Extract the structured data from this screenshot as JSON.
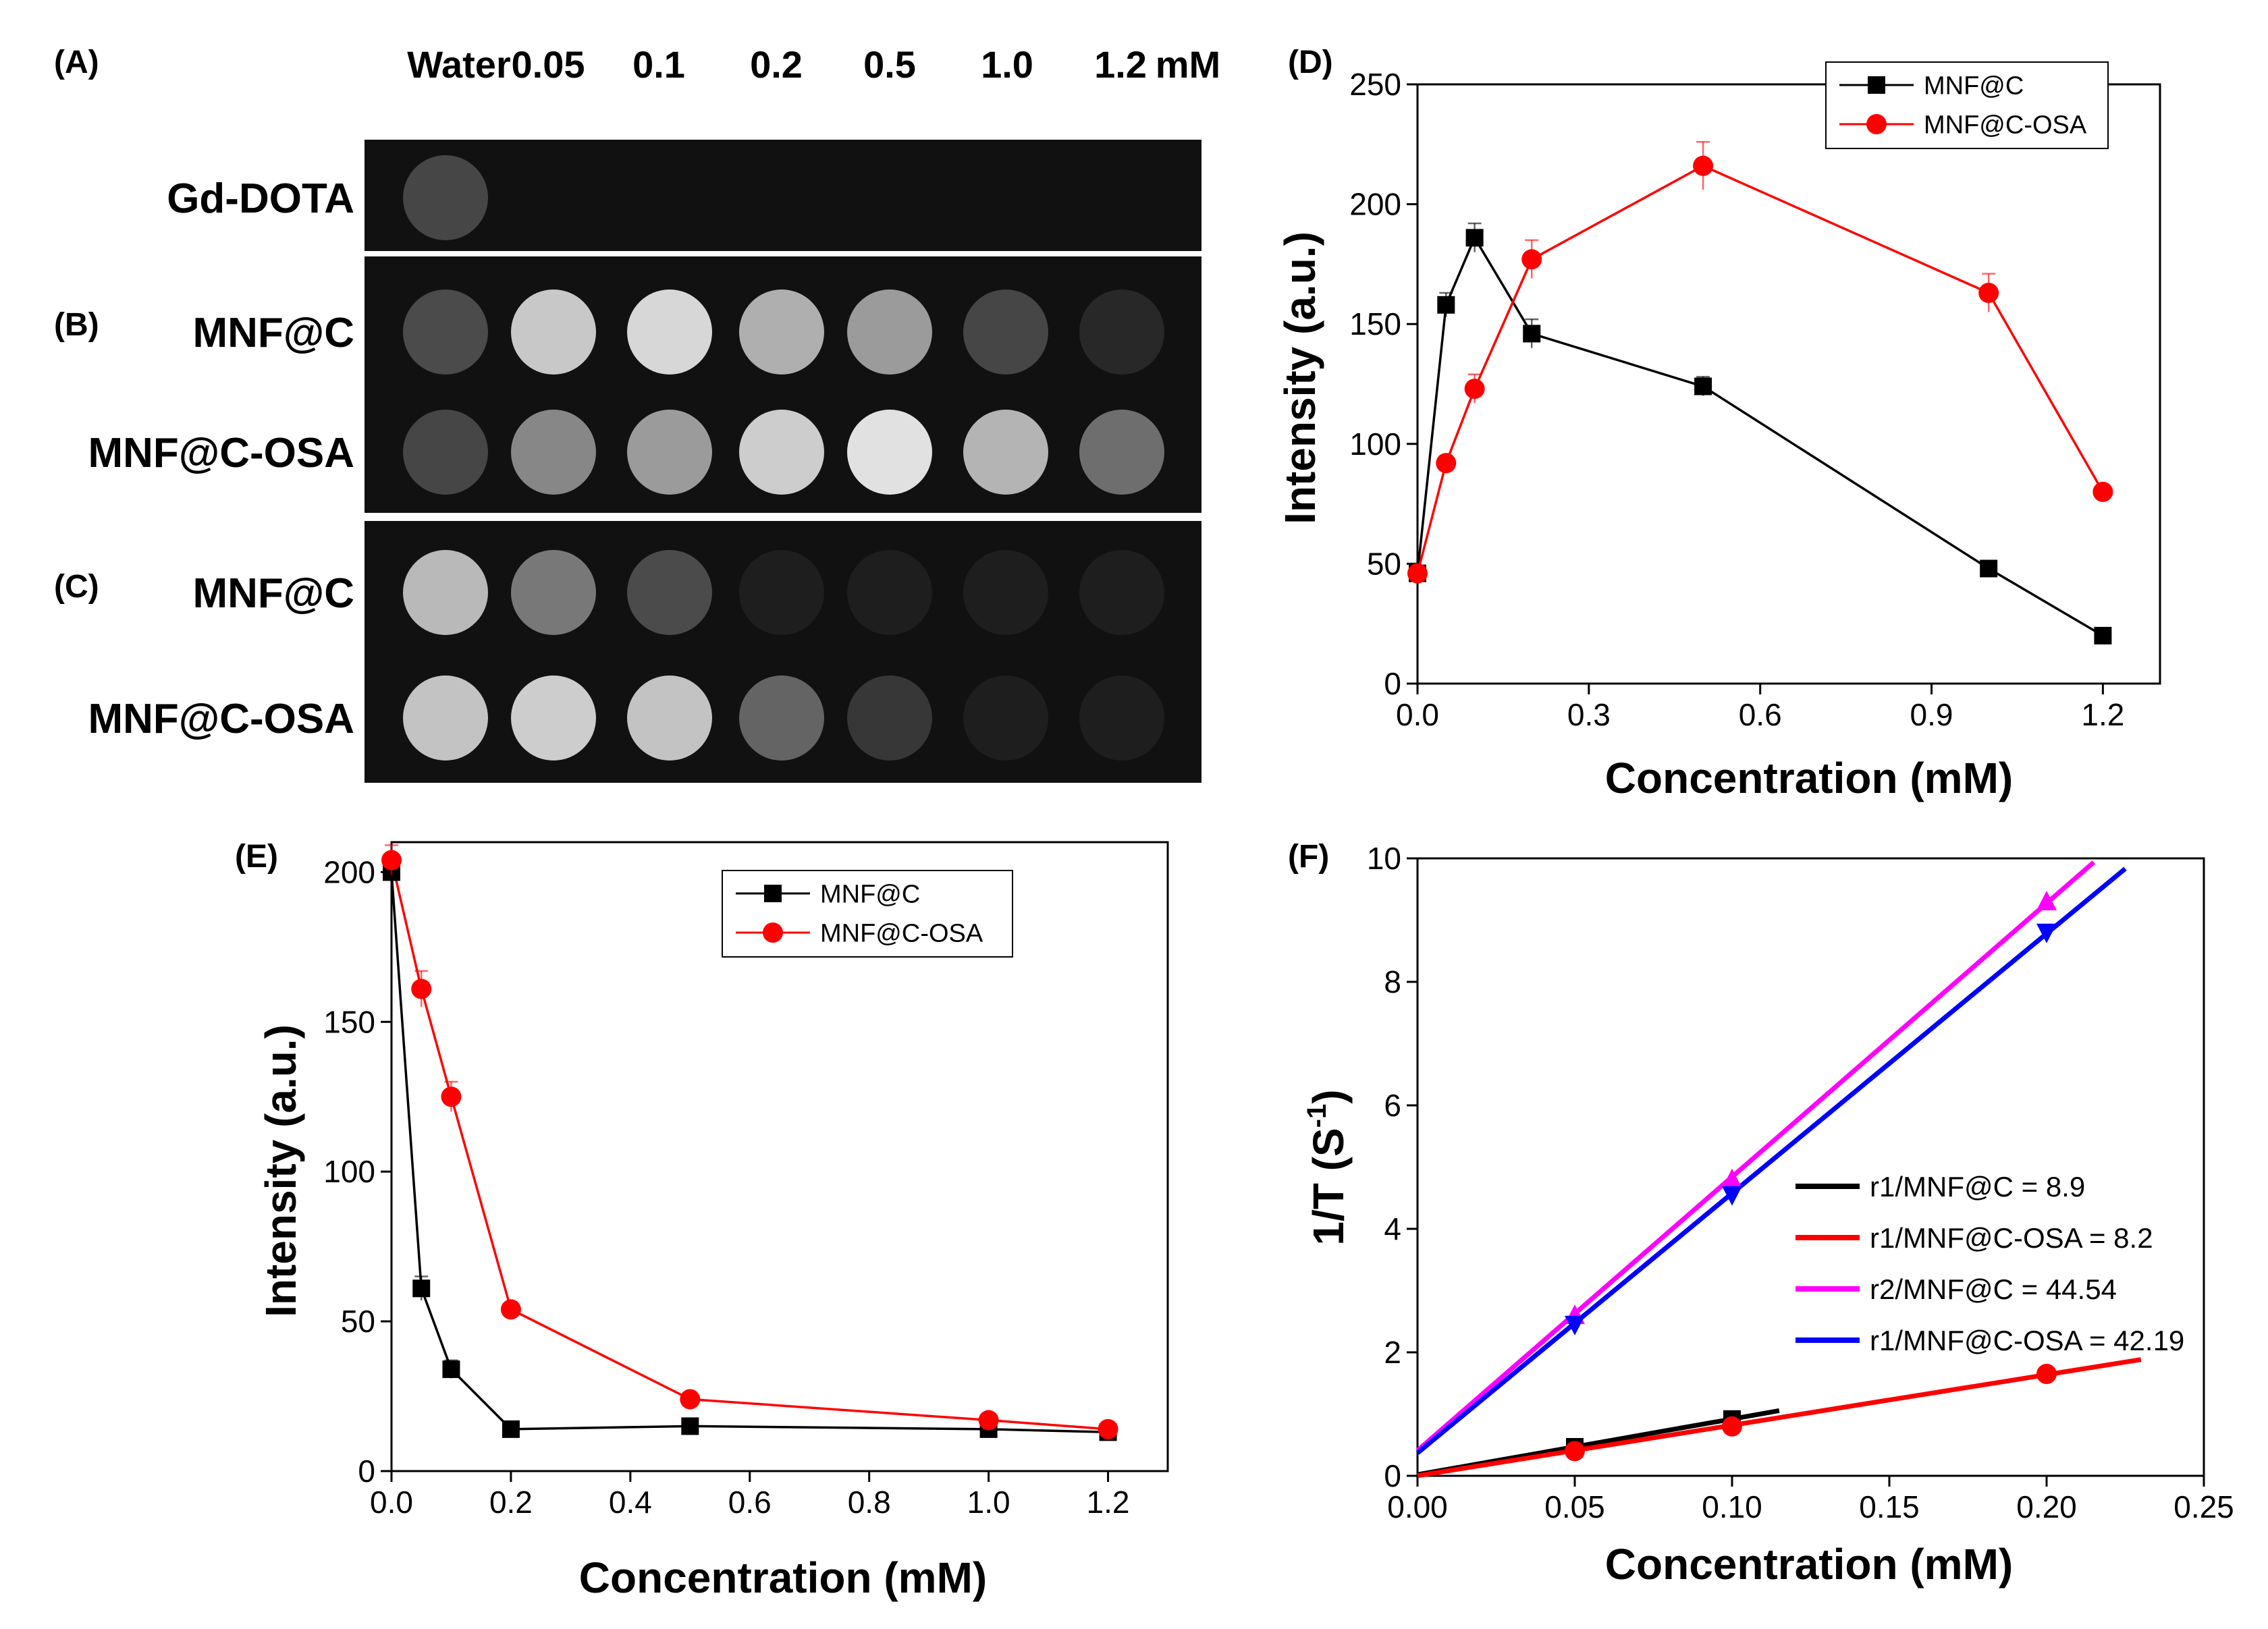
{
  "panel_a": {
    "label": "(A)",
    "columns": [
      "Water",
      "0.05",
      "0.1",
      "0.2",
      "0.5",
      "1.0",
      "1.2"
    ],
    "unit": "mM"
  },
  "panel_b": {
    "label": "(B)"
  },
  "panel_c": {
    "label": "(C)"
  },
  "phantom_rows": [
    {
      "row": "Gd-DOTA",
      "panel": "A",
      "brightness": [
        70
      ]
    },
    {
      "row": "MNF@C",
      "panel": "B",
      "brightness": [
        75,
        200,
        215,
        175,
        155,
        70,
        40
      ]
    },
    {
      "row": "MNF@C-OSA",
      "panel": "B",
      "brightness": [
        70,
        135,
        155,
        205,
        225,
        180,
        110
      ]
    },
    {
      "row": "MNF@C",
      "panel": "C",
      "brightness": [
        185,
        120,
        75,
        30,
        30,
        30,
        30
      ]
    },
    {
      "row": "MNF@C-OSA",
      "panel": "C",
      "brightness": [
        195,
        205,
        195,
        100,
        55,
        30,
        30
      ]
    }
  ],
  "colors": {
    "black_series": "#000000",
    "red_series": "#ff0000",
    "magenta_series": "#ff00ff",
    "blue_series": "#0000ff"
  },
  "chart_data": [
    {
      "panel": "(D)",
      "type": "line",
      "xlabel": "Concentration (mM)",
      "ylabel": "Intensity (a.u.)",
      "xlim": [
        0,
        1.3
      ],
      "ylim": [
        0,
        250
      ],
      "xticks": [
        "0.0",
        "0.3",
        "0.6",
        "0.9",
        "1.2"
      ],
      "yticks": [
        "0",
        "50",
        "100",
        "150",
        "200",
        "250"
      ],
      "legend": "top-center",
      "series": [
        {
          "name": "MNF@C",
          "marker": "square",
          "color": "#000000",
          "x": [
            0,
            0.05,
            0.1,
            0.2,
            0.5,
            1.0,
            1.2
          ],
          "y": [
            46,
            158,
            186,
            146,
            124,
            48,
            20
          ],
          "err": [
            3,
            5,
            6,
            6,
            4,
            3,
            2
          ]
        },
        {
          "name": "MNF@C-OSA",
          "marker": "circle",
          "color": "#ff0000",
          "x": [
            0,
            0.05,
            0.1,
            0.2,
            0.5,
            1.0,
            1.2
          ],
          "y": [
            46,
            92,
            123,
            177,
            216,
            163,
            80
          ],
          "err": [
            3,
            3,
            6,
            8,
            10,
            8,
            3
          ]
        }
      ]
    },
    {
      "panel": "(E)",
      "type": "line",
      "xlabel": "Concentration (mM)",
      "ylabel": "Intensity (a.u.)",
      "xlim": [
        0,
        1.3
      ],
      "ylim": [
        0,
        210
      ],
      "xticks": [
        "0.0",
        "0.2",
        "0.4",
        "0.6",
        "0.8",
        "1.0",
        "1.2"
      ],
      "yticks": [
        "0",
        "50",
        "100",
        "150",
        "200"
      ],
      "legend": "top-center",
      "series": [
        {
          "name": "MNF@C",
          "marker": "square",
          "color": "#000000",
          "x": [
            0,
            0.05,
            0.1,
            0.2,
            0.5,
            1.0,
            1.2
          ],
          "y": [
            200,
            61,
            34,
            14,
            15,
            14,
            13
          ],
          "err": [
            5,
            4,
            3,
            2,
            2,
            2,
            2
          ]
        },
        {
          "name": "MNF@C-OSA",
          "marker": "circle",
          "color": "#ff0000",
          "x": [
            0,
            0.05,
            0.1,
            0.2,
            0.5,
            1.0,
            1.2
          ],
          "y": [
            204,
            161,
            125,
            54,
            24,
            17,
            14
          ],
          "err": [
            5,
            6,
            5,
            2,
            2,
            2,
            2
          ]
        }
      ]
    },
    {
      "panel": "(F)",
      "type": "line",
      "xlabel": "Concentration (mM)",
      "ylabel": "1/T (S",
      "ylabel_sup": "-1",
      "ylabel_close": ")",
      "xlim": [
        0,
        0.25
      ],
      "ylim": [
        0,
        10
      ],
      "xticks": [
        "0.00",
        "0.05",
        "0.10",
        "0.15",
        "0.20",
        "0.25"
      ],
      "yticks": [
        "0",
        "2",
        "4",
        "6",
        "8",
        "10"
      ],
      "legend": "center-right",
      "series": [
        {
          "name": "r1/MNF@C = 8.9",
          "marker": "square",
          "color": "#000000",
          "x": [
            0,
            0.05,
            0.1
          ],
          "y": [
            0.02,
            0.47,
            0.92
          ],
          "fit": [
            0,
            0.115
          ]
        },
        {
          "name": "r1/MNF@C-OSA = 8.2",
          "marker": "circle",
          "color": "#ff0000",
          "x": [
            0,
            0.05,
            0.1,
            0.2
          ],
          "y": [
            0.02,
            0.4,
            0.8,
            1.65
          ],
          "fit": [
            0,
            0.23
          ]
        },
        {
          "name": "r2/MNF@C = 44.54",
          "marker": "triangle-up",
          "color": "#ff00ff",
          "x": [
            0,
            0.05,
            0.1,
            0.2
          ],
          "y": [
            0.45,
            2.6,
            4.8,
            9.3
          ],
          "fit": [
            0,
            0.215
          ]
        },
        {
          "name": "r1/MNF@C-OSA = 42.19",
          "marker": "triangle-down",
          "color": "#0000ff",
          "x": [
            0,
            0.05,
            0.1,
            0.2
          ],
          "y": [
            0.4,
            2.45,
            4.55,
            8.8
          ],
          "fit": [
            0,
            0.225
          ]
        }
      ]
    }
  ]
}
